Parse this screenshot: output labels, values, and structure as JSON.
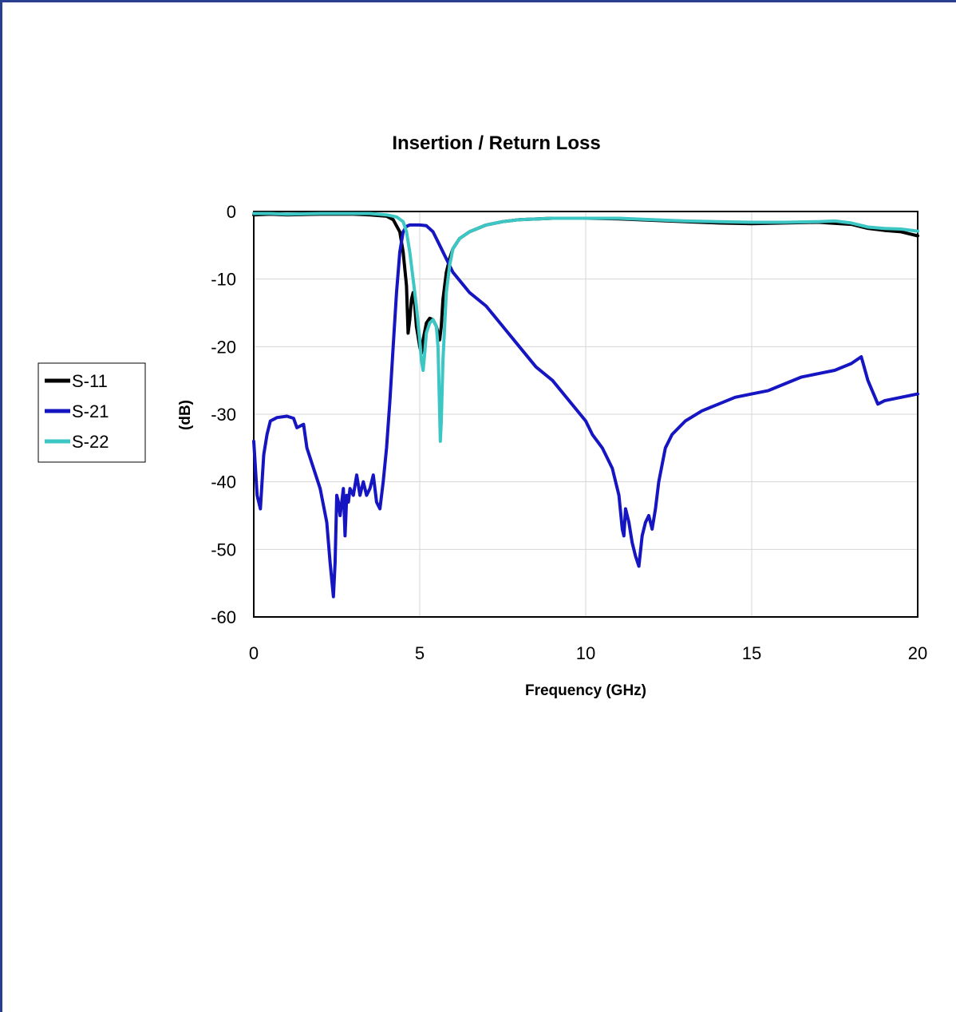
{
  "chart_data": {
    "type": "line",
    "title": "Insertion / Return Loss",
    "xlabel": "Frequency (GHz)",
    "ylabel": "(dB)",
    "xlim": [
      0,
      20
    ],
    "ylim": [
      -60,
      0
    ],
    "xticks": [
      0,
      5,
      10,
      15,
      20
    ],
    "yticks": [
      0,
      -10,
      -20,
      -30,
      -40,
      -50,
      -60
    ],
    "grid": true,
    "legend_position": "left",
    "series": [
      {
        "name": "S-11",
        "color": "#000000",
        "x": [
          0,
          0.5,
          1,
          2,
          3,
          3.5,
          4,
          4.2,
          4.4,
          4.5,
          4.6,
          4.65,
          4.7,
          4.75,
          4.8,
          4.85,
          4.9,
          5.0,
          5.05,
          5.1,
          5.2,
          5.3,
          5.4,
          5.5,
          5.55,
          5.6,
          5.65,
          5.7,
          5.8,
          5.9,
          6.0,
          6.2,
          6.5,
          7,
          7.5,
          8,
          9,
          10,
          11,
          12,
          13,
          14,
          15,
          16,
          17,
          18,
          18.5,
          19,
          19.5,
          20
        ],
        "y": [
          -0.5,
          -0.4,
          -0.5,
          -0.4,
          -0.4,
          -0.5,
          -0.7,
          -1.2,
          -3,
          -6,
          -11,
          -18,
          -16,
          -13,
          -12,
          -14,
          -17,
          -20,
          -21,
          -19,
          -16.5,
          -15.8,
          -16,
          -17,
          -18,
          -19,
          -17,
          -13,
          -9,
          -7,
          -5.5,
          -4,
          -3,
          -2,
          -1.5,
          -1.2,
          -1.0,
          -1.0,
          -1.1,
          -1.3,
          -1.5,
          -1.7,
          -1.8,
          -1.7,
          -1.6,
          -1.9,
          -2.5,
          -2.8,
          -3.0,
          -3.6
        ]
      },
      {
        "name": "S-21",
        "color": "#1515c2",
        "x": [
          0,
          0.1,
          0.2,
          0.25,
          0.3,
          0.4,
          0.5,
          0.7,
          1.0,
          1.2,
          1.3,
          1.5,
          1.6,
          1.8,
          2.0,
          2.2,
          2.3,
          2.4,
          2.45,
          2.5,
          2.55,
          2.6,
          2.7,
          2.75,
          2.8,
          2.85,
          2.9,
          3.0,
          3.1,
          3.2,
          3.3,
          3.4,
          3.5,
          3.6,
          3.7,
          3.8,
          3.9,
          4.0,
          4.1,
          4.2,
          4.3,
          4.4,
          4.5,
          4.6,
          4.7,
          4.8,
          4.9,
          5.0,
          5.2,
          5.4,
          5.6,
          5.8,
          6.0,
          6.5,
          7.0,
          7.5,
          8.0,
          8.5,
          9.0,
          9.5,
          10.0,
          10.2,
          10.5,
          10.8,
          11.0,
          11.1,
          11.15,
          11.2,
          11.3,
          11.4,
          11.5,
          11.6,
          11.7,
          11.8,
          11.9,
          12.0,
          12.1,
          12.2,
          12.4,
          12.6,
          13.0,
          13.5,
          14.0,
          14.5,
          15.0,
          15.5,
          16.0,
          16.5,
          17.0,
          17.5,
          18.0,
          18.3,
          18.5,
          18.8,
          19.0,
          19.5,
          20.0
        ],
        "y": [
          -34,
          -42,
          -44,
          -40,
          -36,
          -33,
          -31,
          -30.5,
          -30.3,
          -30.6,
          -32,
          -31.5,
          -35,
          -38,
          -41,
          -46,
          -52,
          -57,
          -52,
          -42,
          -43,
          -45,
          -41,
          -48,
          -42,
          -43,
          -41,
          -42,
          -39,
          -42,
          -40,
          -42,
          -41,
          -39,
          -43,
          -44,
          -40,
          -35,
          -28,
          -20,
          -12,
          -6,
          -3,
          -2.2,
          -2,
          -2,
          -2,
          -2,
          -2.1,
          -3,
          -5,
          -7,
          -9,
          -12,
          -14,
          -17,
          -20,
          -23,
          -25,
          -28,
          -31,
          -33,
          -35,
          -38,
          -42,
          -47,
          -48,
          -44,
          -46,
          -49,
          -51,
          -52.5,
          -48,
          -46,
          -45,
          -47,
          -44,
          -40,
          -35,
          -33,
          -31,
          -29.5,
          -28.5,
          -27.5,
          -27,
          -26.5,
          -25.5,
          -24.5,
          -24,
          -23.5,
          -22.5,
          -21.5,
          -25,
          -28.5,
          -28,
          -27.5,
          -27
        ]
      },
      {
        "name": "S-22",
        "color": "#3cc6c4",
        "x": [
          0,
          0.5,
          1,
          2,
          3,
          3.5,
          4,
          4.3,
          4.5,
          4.6,
          4.7,
          4.8,
          4.9,
          5.0,
          5.05,
          5.1,
          5.15,
          5.2,
          5.3,
          5.4,
          5.5,
          5.55,
          5.6,
          5.62,
          5.65,
          5.7,
          5.8,
          5.9,
          6.0,
          6.2,
          6.5,
          7,
          7.5,
          8,
          9,
          10,
          11,
          12,
          13,
          14,
          15,
          16,
          17,
          17.5,
          18,
          18.5,
          19,
          19.5,
          20
        ],
        "y": [
          -0.3,
          -0.3,
          -0.4,
          -0.3,
          -0.3,
          -0.3,
          -0.5,
          -0.8,
          -1.5,
          -3,
          -6,
          -10,
          -14,
          -19,
          -22,
          -23.5,
          -21,
          -18,
          -16.5,
          -16,
          -17,
          -20,
          -30,
          -34,
          -31,
          -22,
          -12,
          -8,
          -5.5,
          -4,
          -3,
          -2,
          -1.5,
          -1.2,
          -1.0,
          -1.0,
          -1.0,
          -1.2,
          -1.4,
          -1.5,
          -1.6,
          -1.6,
          -1.5,
          -1.4,
          -1.7,
          -2.3,
          -2.5,
          -2.6,
          -2.9
        ]
      }
    ]
  }
}
